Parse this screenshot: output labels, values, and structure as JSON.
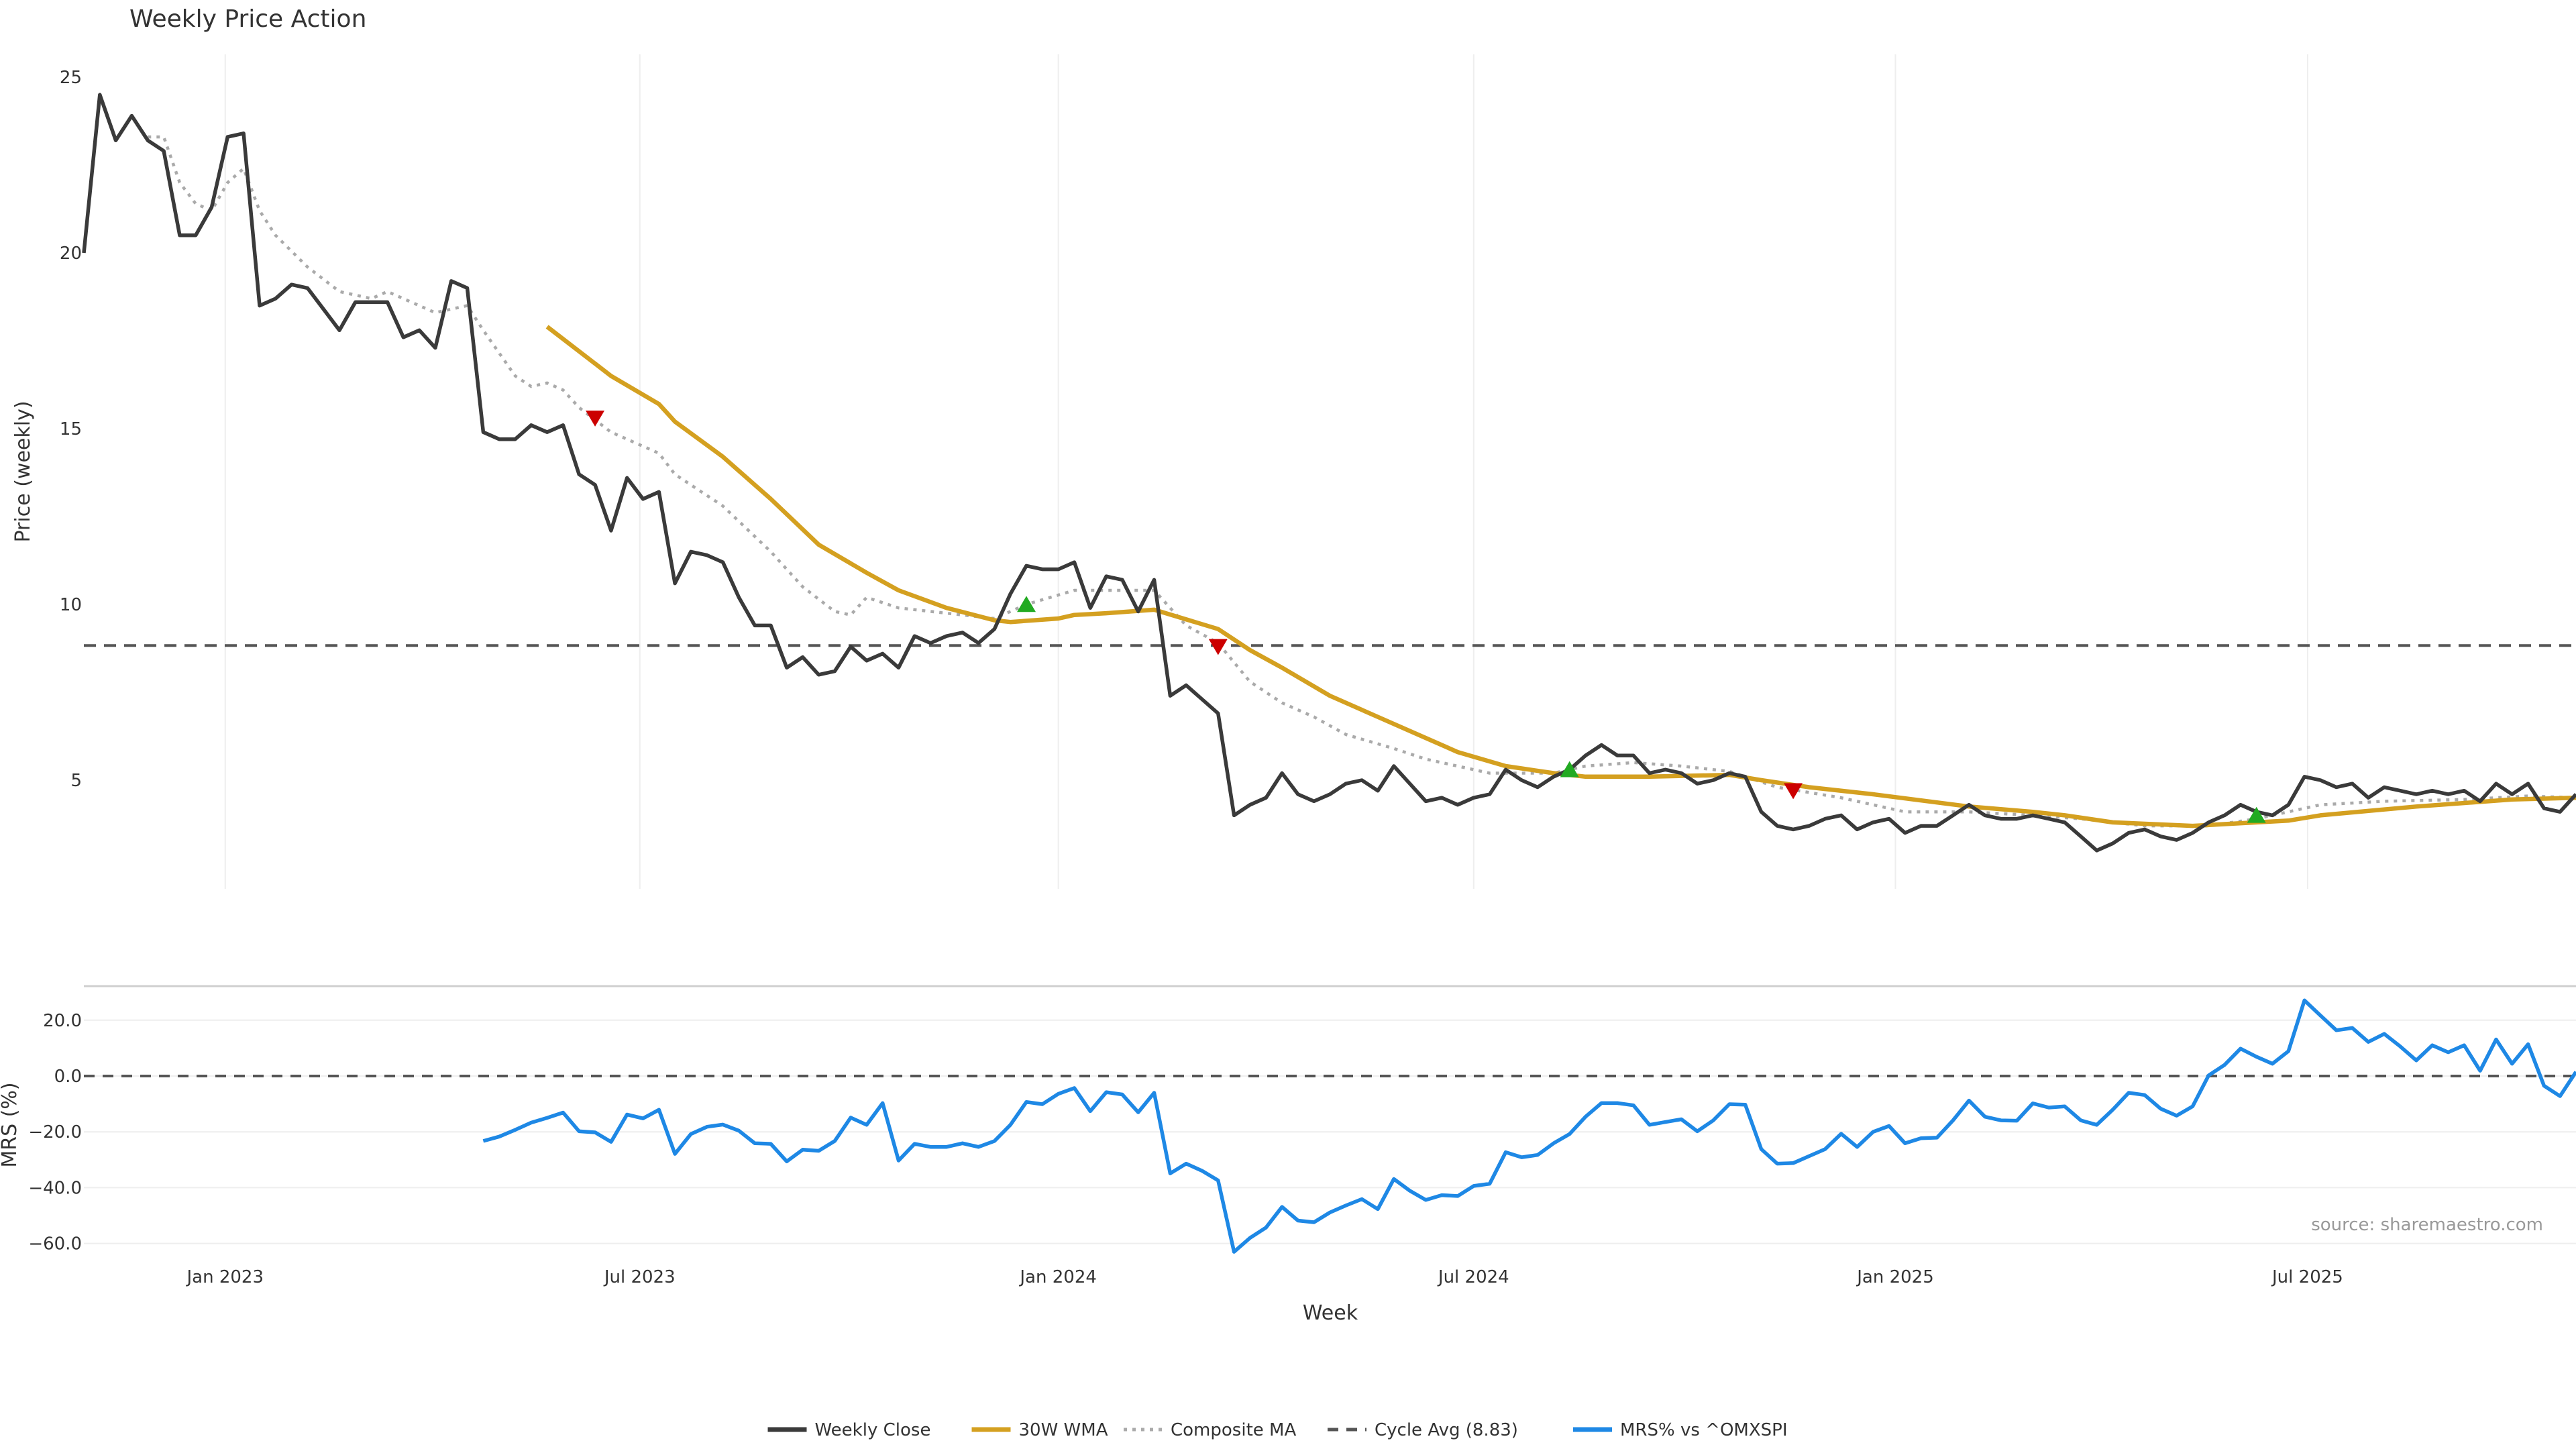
{
  "chart_data": [
    {
      "type": "line",
      "title": "Weekly Price Action",
      "xlabel": "",
      "ylabel": "Price (weekly)",
      "x_unit": "week index (0 = early Nov 2022, weekly to late Oct 2025)",
      "x_ticks": [
        {
          "label": "Jan 2023",
          "index": 8.85
        },
        {
          "label": "Jul 2023",
          "index": 34.8
        },
        {
          "label": "Jan 2024",
          "index": 61
        },
        {
          "label": "Jul 2024",
          "index": 87
        },
        {
          "label": "Jan 2025",
          "index": 113.4
        },
        {
          "label": "Jul 2025",
          "index": 139.2
        }
      ],
      "y_ticks": [
        5,
        10,
        15,
        20,
        25
      ],
      "ylim": [
        2.6,
        26.5
      ],
      "grid": "vertical",
      "series": [
        {
          "name": "Weekly Close",
          "color": "#3a3a3a",
          "start_index": 0,
          "values": [
            20.0,
            24.5,
            23.2,
            23.9,
            23.2,
            22.9,
            20.5,
            20.5,
            21.3,
            23.3,
            23.4,
            18.5,
            18.7,
            19.1,
            19.0,
            18.4,
            17.8,
            18.6,
            18.6,
            18.6,
            17.6,
            17.8,
            17.3,
            19.2,
            19.0,
            14.9,
            14.7,
            14.7,
            15.1,
            14.9,
            15.1,
            13.7,
            13.4,
            12.1,
            13.6,
            13.0,
            13.2,
            10.6,
            11.5,
            11.4,
            11.2,
            10.2,
            9.4,
            9.4,
            8.2,
            8.5,
            8.0,
            8.1,
            8.8,
            8.4,
            8.6,
            8.2,
            9.1,
            8.9,
            9.1,
            9.2,
            8.9,
            9.3,
            10.3,
            11.1,
            11.0,
            11.0,
            11.2,
            9.9,
            10.8,
            10.7,
            9.8,
            10.7,
            7.4,
            7.7,
            7.3,
            6.9,
            4.0,
            4.3,
            4.5,
            5.2,
            4.6,
            4.4,
            4.6,
            4.9,
            5.0,
            4.7,
            5.4,
            4.9,
            4.4,
            4.5,
            4.3,
            4.5,
            4.6,
            5.3,
            5.0,
            4.8,
            5.1,
            5.3,
            5.7,
            6.0,
            5.7,
            5.7,
            5.2,
            5.3,
            5.2,
            4.9,
            5.0,
            5.2,
            5.1,
            4.1,
            3.7,
            3.6,
            3.7,
            3.9,
            4.0,
            3.6,
            3.8,
            3.9,
            3.5,
            3.7,
            3.7,
            4.0,
            4.3,
            4.0,
            3.9,
            3.9,
            4.0,
            3.9,
            3.8,
            3.4,
            3.0,
            3.2,
            3.5,
            3.6,
            3.4,
            3.3,
            3.5,
            3.8,
            4.0,
            4.3,
            4.1,
            4.0,
            4.3,
            5.1,
            5.0,
            4.8,
            4.9,
            4.5,
            4.8,
            4.7,
            4.6,
            4.7,
            4.6,
            4.7,
            4.4,
            4.9,
            4.6,
            4.9,
            4.2,
            4.1,
            4.6
          ]
        },
        {
          "name": "30W WMA",
          "color": "#d4a020",
          "points": [
            [
              29,
              17.9
            ],
            [
              33,
              16.5
            ],
            [
              36,
              15.7
            ],
            [
              37,
              15.2
            ],
            [
              40,
              14.2
            ],
            [
              43,
              13.0
            ],
            [
              46,
              11.7
            ],
            [
              49,
              10.9
            ],
            [
              51,
              10.4
            ],
            [
              54,
              9.9
            ],
            [
              57,
              9.55
            ],
            [
              58,
              9.5
            ],
            [
              61,
              9.6
            ],
            [
              62,
              9.7
            ],
            [
              64,
              9.75
            ],
            [
              67,
              9.85
            ],
            [
              71,
              9.3
            ],
            [
              73,
              8.7
            ],
            [
              75,
              8.2
            ],
            [
              78,
              7.4
            ],
            [
              81,
              6.8
            ],
            [
              84,
              6.2
            ],
            [
              86,
              5.8
            ],
            [
              89,
              5.4
            ],
            [
              92,
              5.2
            ],
            [
              94,
              5.1
            ],
            [
              98,
              5.1
            ],
            [
              103,
              5.15
            ],
            [
              105,
              5.0
            ],
            [
              108,
              4.8
            ],
            [
              112,
              4.6
            ],
            [
              118,
              4.25
            ],
            [
              122,
              4.1
            ],
            [
              124,
              4.0
            ],
            [
              127,
              3.8
            ],
            [
              132,
              3.7
            ],
            [
              136,
              3.8
            ],
            [
              138,
              3.85
            ],
            [
              140,
              4.0
            ],
            [
              146,
              4.25
            ],
            [
              152,
              4.45
            ],
            [
              156,
              4.5
            ]
          ]
        },
        {
          "name": "Composite MA",
          "color": "#aaaaaa",
          "points": [
            [
              4,
              23.3
            ],
            [
              5,
              23.3
            ],
            [
              6,
              22.0
            ],
            [
              7,
              21.4
            ],
            [
              8,
              21.2
            ],
            [
              9,
              22.0
            ],
            [
              10,
              22.4
            ],
            [
              11,
              21.2
            ],
            [
              12,
              20.5
            ],
            [
              14,
              19.6
            ],
            [
              16,
              18.9
            ],
            [
              18,
              18.7
            ],
            [
              19,
              18.9
            ],
            [
              21,
              18.5
            ],
            [
              22,
              18.3
            ],
            [
              24,
              18.5
            ],
            [
              25,
              17.8
            ],
            [
              27,
              16.5
            ],
            [
              28,
              16.2
            ],
            [
              29,
              16.3
            ],
            [
              30,
              16.1
            ],
            [
              31,
              15.6
            ],
            [
              33,
              14.9
            ],
            [
              36,
              14.3
            ],
            [
              37,
              13.7
            ],
            [
              40,
              12.8
            ],
            [
              43,
              11.5
            ],
            [
              45,
              10.5
            ],
            [
              47,
              9.8
            ],
            [
              48,
              9.7
            ],
            [
              49,
              10.2
            ],
            [
              51,
              9.9
            ],
            [
              55,
              9.7
            ],
            [
              57,
              9.6
            ],
            [
              59,
              10.0
            ],
            [
              62,
              10.4
            ],
            [
              67,
              10.4
            ],
            [
              69,
              9.4
            ],
            [
              71,
              8.9
            ],
            [
              73,
              7.8
            ],
            [
              75,
              7.2
            ],
            [
              77,
              6.8
            ],
            [
              79,
              6.3
            ],
            [
              82,
              5.9
            ],
            [
              84,
              5.6
            ],
            [
              88,
              5.2
            ],
            [
              92,
              5.2
            ],
            [
              94,
              5.4
            ],
            [
              97,
              5.5
            ],
            [
              100,
              5.4
            ],
            [
              103,
              5.25
            ],
            [
              106,
              4.8
            ],
            [
              110,
              4.5
            ],
            [
              114,
              4.1
            ],
            [
              118,
              4.1
            ],
            [
              122,
              4.0
            ],
            [
              125,
              3.9
            ],
            [
              129,
              3.7
            ],
            [
              133,
              3.7
            ],
            [
              136,
              3.9
            ],
            [
              140,
              4.3
            ],
            [
              144,
              4.4
            ],
            [
              149,
              4.45
            ],
            [
              153,
              4.55
            ],
            [
              156,
              4.5
            ]
          ]
        },
        {
          "name": "Cycle Avg (8.83)",
          "color": "#555555",
          "value": 8.83
        }
      ],
      "signals": [
        {
          "type": "sell",
          "index": 32,
          "value": 15.3,
          "color": "#cc0000"
        },
        {
          "type": "buy",
          "index": 59,
          "value": 10.0,
          "color": "#22aa22"
        },
        {
          "type": "sell",
          "index": 71,
          "value": 8.8,
          "color": "#cc0000"
        },
        {
          "type": "buy",
          "index": 93,
          "value": 5.3,
          "color": "#22aa22"
        },
        {
          "type": "sell",
          "index": 107,
          "value": 4.7,
          "color": "#cc0000"
        },
        {
          "type": "buy",
          "index": 136,
          "value": 4.0,
          "color": "#22aa22"
        }
      ]
    },
    {
      "type": "line",
      "title": "",
      "xlabel": "Week",
      "ylabel": "MRS (%)",
      "y_ticks": [
        "20.0",
        "0.0",
        "−20.0",
        "−40.0",
        "−60.0"
      ],
      "y_tick_values": [
        20,
        0,
        -20,
        -40,
        -60
      ],
      "ylim": [
        -66,
        35
      ],
      "grid": "horizontal",
      "zero_line": 0,
      "series": [
        {
          "name": "MRS% vs ^OMXSPI",
          "color": "#1e88e5",
          "start_index": 25,
          "values": [
            -23.3,
            -21.7,
            -19.3,
            -16.7,
            -15.0,
            -13.1,
            -19.8,
            -20.2,
            -23.6,
            -13.8,
            -15.2,
            -12.1,
            -27.9,
            -20.8,
            -18.2,
            -17.4,
            -19.6,
            -24.1,
            -24.3,
            -30.6,
            -26.4,
            -26.8,
            -23.3,
            -14.9,
            -17.5,
            -9.7,
            -30.3,
            -24.3,
            -25.4,
            -25.4,
            -24.1,
            -25.4,
            -23.3,
            -17.5,
            -9.3,
            -10.1,
            -6.4,
            -4.3,
            -12.6,
            -5.8,
            -6.6,
            -13.0,
            -6.0,
            -34.9,
            -31.4,
            -34.0,
            -37.4,
            -63.0,
            -58.0,
            -54.3,
            -46.9,
            -51.8,
            -52.4,
            -48.9,
            -46.4,
            -44.1,
            -47.7,
            -36.9,
            -41.1,
            -44.4,
            -42.7,
            -43.0,
            -39.4,
            -38.6,
            -27.3,
            -29.1,
            -28.3,
            -24.1,
            -20.8,
            -14.6,
            -9.7,
            -9.7,
            -10.5,
            -17.5,
            -16.5,
            -15.5,
            -19.8,
            -15.9,
            -10.1,
            -10.3,
            -26.2,
            -31.4,
            -31.2,
            -28.7,
            -26.2,
            -20.7,
            -25.4,
            -20.0,
            -17.9,
            -24.1,
            -22.3,
            -22.1,
            -15.9,
            -8.8,
            -14.6,
            -15.9,
            -16.0,
            -9.8,
            -11.3,
            -10.9,
            -15.9,
            -17.5,
            -12.1,
            -6.0,
            -6.8,
            -11.7,
            -14.2,
            -10.9,
            0.2,
            4.0,
            9.8,
            6.9,
            4.4,
            8.9,
            27.1,
            21.7,
            16.4,
            17.2,
            12.2,
            15.1,
            10.6,
            5.6,
            11.0,
            8.5,
            11.0,
            1.9,
            13.1,
            4.4,
            11.4,
            -3.5,
            -7.2,
            1.5
          ]
        }
      ]
    }
  ],
  "legend": {
    "placement": "bottom-center",
    "items": [
      {
        "label": "Weekly Close",
        "style": "solid",
        "color": "#3a3a3a"
      },
      {
        "label": "30W WMA",
        "style": "solid",
        "color": "#d4a020"
      },
      {
        "label": "Composite MA",
        "style": "dotted",
        "color": "#aaaaaa"
      },
      {
        "label": "Cycle Avg (8.83)",
        "style": "dashed",
        "color": "#555555"
      },
      {
        "label": "MRS% vs ^OMXSPI",
        "style": "solid",
        "color": "#1e88e5"
      }
    ]
  },
  "source": "source: sharemaestro.com"
}
